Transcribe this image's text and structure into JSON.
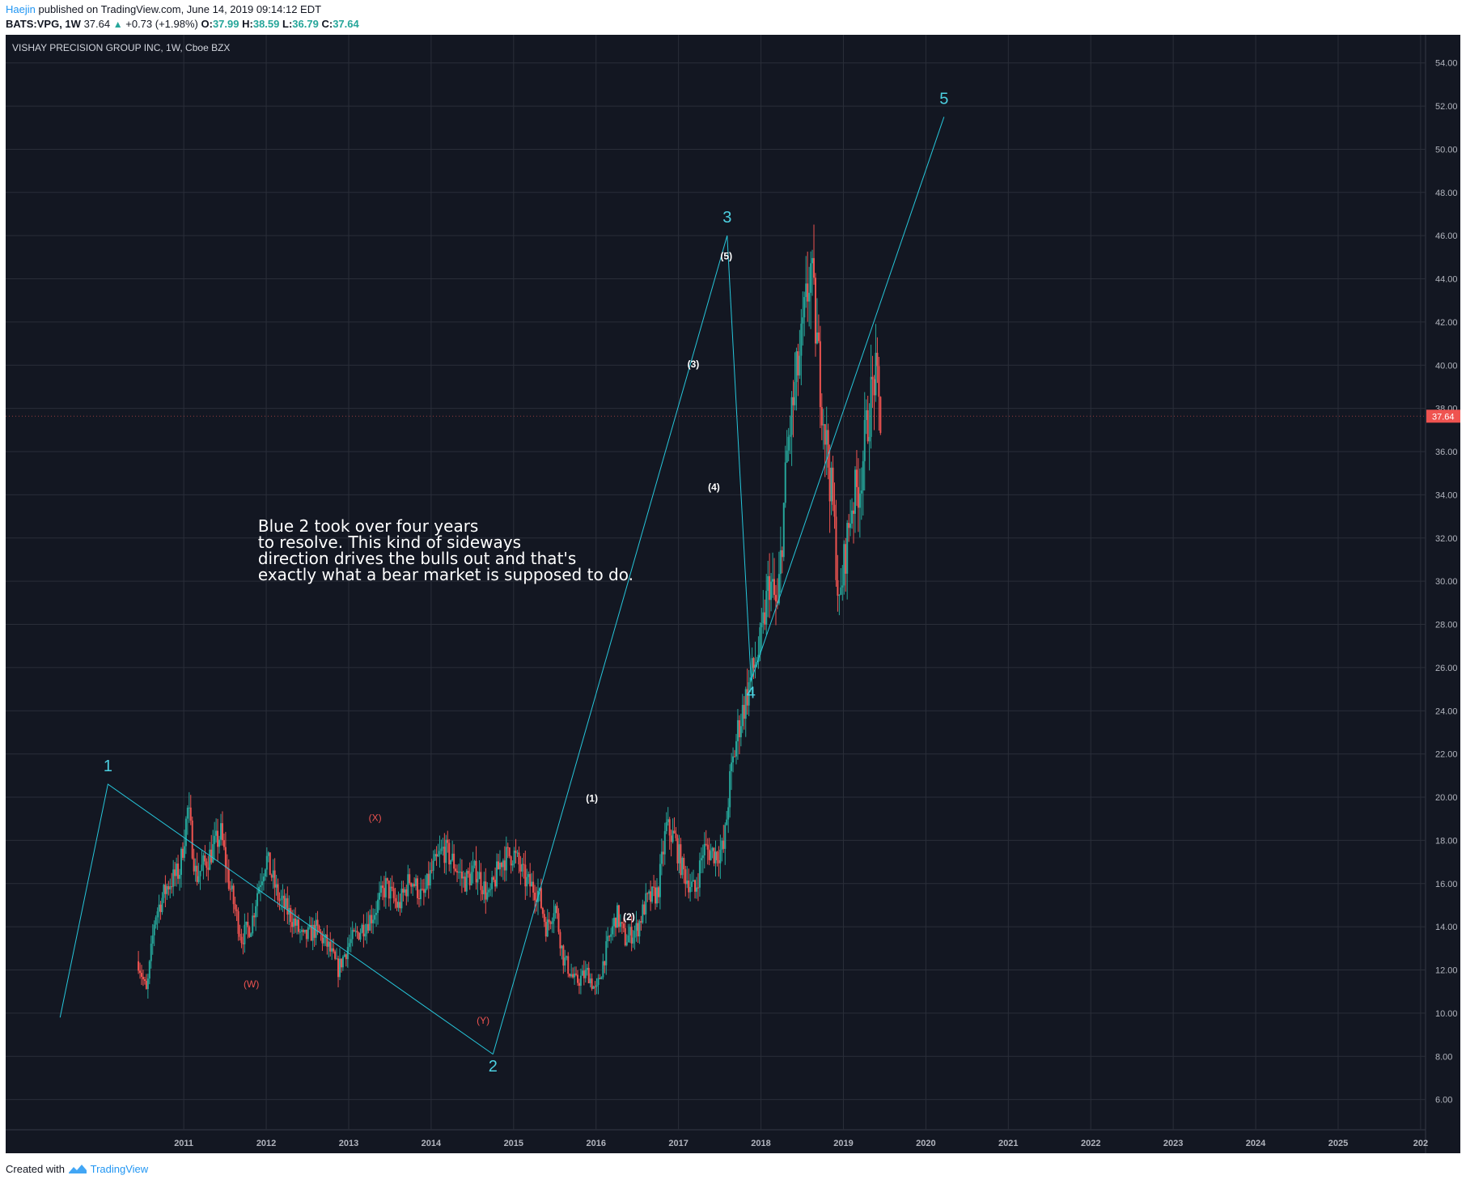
{
  "header": {
    "author": "Haejin",
    "published_text": "published on TradingView.com, June 14, 2019 09:14:12 EDT",
    "symbol_tf": "BATS:VPG, 1W",
    "last": "37.64",
    "up_icon": "triangle-up-icon",
    "change": "+0.73 (+1.98%)",
    "o_label": "O:",
    "o": "37.99",
    "h_label": "H:",
    "h": "38.59",
    "l_label": "L:",
    "l": "36.79",
    "c_label": "C:",
    "c": "37.64"
  },
  "footer": {
    "created_with": "Created with",
    "brand": "TradingView",
    "logo_icon": "tradingview-logo-icon"
  },
  "colors": {
    "background": "#131722",
    "grid": "#2a2e39",
    "up": "#26a69a",
    "down": "#ef5350",
    "wave_line": "#26c6da",
    "wave_label": "#4dd0e1",
    "sub_label": "#ffffff",
    "wxy_label": "#ef5350",
    "price_tag": "#ef5350"
  },
  "chart_data": {
    "type": "candlestick",
    "title": "VISHAY PRECISION GROUP INC, 1W, Cboe BZX",
    "ylim": [
      4.6,
      55.3
    ],
    "yticks": [
      "54.00",
      "52.00",
      "50.00",
      "48.00",
      "46.00",
      "44.00",
      "42.00",
      "40.00",
      "38.00",
      "36.00",
      "34.00",
      "32.00",
      "30.00",
      "28.00",
      "26.00",
      "24.00",
      "22.00",
      "20.00",
      "18.00",
      "16.00",
      "14.00",
      "12.00",
      "10.00",
      "8.00",
      "6.00"
    ],
    "xlim": [
      2008.84,
      2026.06
    ],
    "xticks": [
      "2011",
      "2012",
      "2013",
      "2014",
      "2015",
      "2016",
      "2017",
      "2018",
      "2019",
      "2020",
      "2021",
      "2022",
      "2023",
      "2024",
      "2025",
      "202"
    ],
    "last_price_tag": "37.64",
    "price_path": [
      [
        2010.45,
        12.4
      ],
      [
        2010.55,
        10.9
      ],
      [
        2010.65,
        14.5
      ],
      [
        2010.8,
        15.9
      ],
      [
        2010.95,
        16.6
      ],
      [
        2011.05,
        19.5
      ],
      [
        2011.15,
        16.3
      ],
      [
        2011.3,
        17.2
      ],
      [
        2011.45,
        18.3
      ],
      [
        2011.55,
        16.0
      ],
      [
        2011.7,
        13.5
      ],
      [
        2011.82,
        14.1
      ],
      [
        2011.9,
        15.8
      ],
      [
        2012.0,
        17.2
      ],
      [
        2012.15,
        15.3
      ],
      [
        2012.3,
        14.5
      ],
      [
        2012.45,
        13.4
      ],
      [
        2012.6,
        13.9
      ],
      [
        2012.75,
        13.1
      ],
      [
        2012.87,
        12.0
      ],
      [
        2013.0,
        13.2
      ],
      [
        2013.15,
        13.9
      ],
      [
        2013.3,
        14.6
      ],
      [
        2013.45,
        15.9
      ],
      [
        2013.6,
        14.9
      ],
      [
        2013.75,
        16.3
      ],
      [
        2013.9,
        15.3
      ],
      [
        2014.0,
        16.5
      ],
      [
        2014.15,
        17.6
      ],
      [
        2014.25,
        17.1
      ],
      [
        2014.4,
        16.1
      ],
      [
        2014.55,
        16.6
      ],
      [
        2014.7,
        15.3
      ],
      [
        2014.85,
        17.1
      ],
      [
        2015.0,
        17.4
      ],
      [
        2015.15,
        16.1
      ],
      [
        2015.3,
        15.6
      ],
      [
        2015.4,
        13.9
      ],
      [
        2015.5,
        15.1
      ],
      [
        2015.6,
        12.6
      ],
      [
        2015.75,
        11.4
      ],
      [
        2015.9,
        11.9
      ],
      [
        2016.0,
        10.9
      ],
      [
        2016.1,
        12.6
      ],
      [
        2016.25,
        14.6
      ],
      [
        2016.35,
        13.4
      ],
      [
        2016.5,
        13.9
      ],
      [
        2016.6,
        15.1
      ],
      [
        2016.75,
        15.6
      ],
      [
        2016.85,
        18.6
      ],
      [
        2016.95,
        18.1
      ],
      [
        2017.05,
        16.6
      ],
      [
        2017.2,
        15.6
      ],
      [
        2017.3,
        17.6
      ],
      [
        2017.45,
        17.4
      ],
      [
        2017.55,
        17.6
      ],
      [
        2017.62,
        20.6
      ],
      [
        2017.72,
        23.1
      ],
      [
        2017.85,
        25.1
      ],
      [
        2017.92,
        26.1
      ],
      [
        2018.0,
        27.1
      ],
      [
        2018.1,
        30.1
      ],
      [
        2018.2,
        28.6
      ],
      [
        2018.32,
        36.1
      ],
      [
        2018.42,
        39.1
      ],
      [
        2018.5,
        41.1
      ],
      [
        2018.6,
        44.6
      ],
      [
        2018.7,
        40.1
      ],
      [
        2018.8,
        36.1
      ],
      [
        2018.88,
        33.1
      ],
      [
        2018.95,
        28.6
      ],
      [
        2019.0,
        30.6
      ],
      [
        2019.1,
        33.6
      ],
      [
        2019.2,
        34.6
      ],
      [
        2019.3,
        37.6
      ],
      [
        2019.38,
        39.6
      ],
      [
        2019.45,
        37.6
      ]
    ],
    "wave_lines": [
      {
        "name": "blue-wave-1-2",
        "points": [
          [
            2009.5,
            9.8
          ],
          [
            2010.08,
            20.6
          ],
          [
            2014.75,
            8.1
          ]
        ]
      },
      {
        "name": "blue-wave-2-3",
        "points": [
          [
            2014.75,
            8.1
          ],
          [
            2017.59,
            46.0
          ]
        ]
      },
      {
        "name": "blue-wave-3-4",
        "points": [
          [
            2017.59,
            46.0
          ],
          [
            2017.88,
            25.4
          ]
        ]
      },
      {
        "name": "blue-wave-4-5",
        "points": [
          [
            2017.88,
            25.4
          ],
          [
            2020.22,
            51.5
          ]
        ]
      }
    ],
    "wave_labels": [
      {
        "text": "1",
        "x": 2010.08,
        "y": 21.2,
        "kind": "wave"
      },
      {
        "text": "2",
        "x": 2014.75,
        "y": 7.3,
        "kind": "wave"
      },
      {
        "text": "3",
        "x": 2017.59,
        "y": 46.6,
        "kind": "wave"
      },
      {
        "text": "4",
        "x": 2017.88,
        "y": 24.6,
        "kind": "wave"
      },
      {
        "text": "5",
        "x": 2020.22,
        "y": 52.1,
        "kind": "wave"
      },
      {
        "text": "(1)",
        "x": 2015.95,
        "y": 19.8,
        "kind": "sub"
      },
      {
        "text": "(2)",
        "x": 2016.4,
        "y": 14.3,
        "kind": "sub"
      },
      {
        "text": "(3)",
        "x": 2017.18,
        "y": 39.9,
        "kind": "sub"
      },
      {
        "text": "(4)",
        "x": 2017.43,
        "y": 34.2,
        "kind": "sub"
      },
      {
        "text": "(5)",
        "x": 2017.58,
        "y": 44.9,
        "kind": "sub"
      },
      {
        "text": "(W)",
        "x": 2011.82,
        "y": 11.2,
        "kind": "wxy"
      },
      {
        "text": "(X)",
        "x": 2013.32,
        "y": 18.9,
        "kind": "wxy"
      },
      {
        "text": "(Y)",
        "x": 2014.63,
        "y": 9.5,
        "kind": "wxy"
      }
    ],
    "annotation": [
      "Blue 2 took over four years",
      "to resolve. This kind of sideways",
      "direction drives the bulls out and that's",
      "exactly what a bear market is supposed to do."
    ],
    "annotation_x": 2011.9,
    "annotation_y": 32.3
  }
}
